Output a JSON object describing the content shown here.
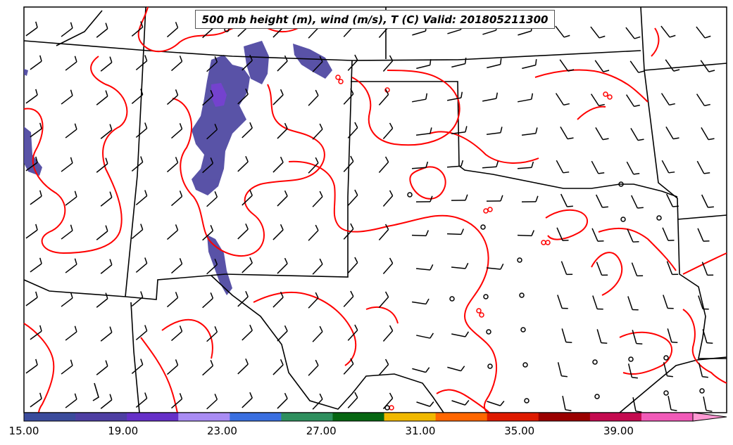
{
  "map": {
    "title": "500 mb height (m), wind (m/s), T (C) Valid: 201805211300",
    "frame_color": "#000000",
    "contour_color": "#ff0000",
    "border_color": "#000000",
    "barb_color": "#000000"
  },
  "colorbar": {
    "ticks": [
      "15.00",
      "19.00",
      "23.00",
      "27.00",
      "31.00",
      "35.00",
      "39.00"
    ],
    "min": 15,
    "max": 42,
    "step": 2,
    "colors": [
      "#3b4b9c",
      "#4e3fa3",
      "#6630c8",
      "#a98cf4",
      "#3a6fe0",
      "#2e8f5e",
      "#066612",
      "#f0b800",
      "#ff6600",
      "#de1a00",
      "#9a0000",
      "#c40a4f",
      "#f15ab8",
      "#ff9ad4"
    ]
  }
}
